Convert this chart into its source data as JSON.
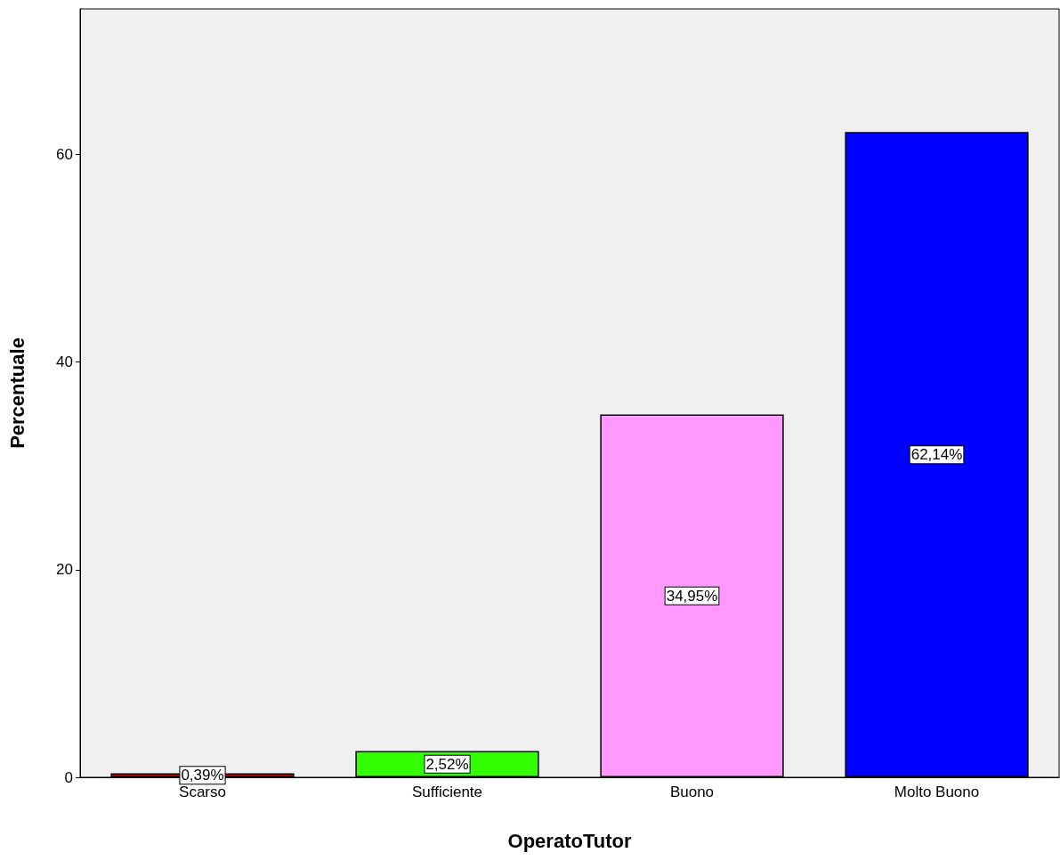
{
  "chart_data": {
    "type": "bar",
    "xlabel": "OperatoTutor",
    "ylabel": "Percentuale",
    "categories": [
      "Scarso",
      "Sufficiente",
      "Buono",
      "Molto Buono"
    ],
    "values": [
      0.39,
      2.52,
      34.95,
      62.14
    ],
    "colors": [
      "#cc0000",
      "#33ff00",
      "#ff99ff",
      "#0000ff"
    ],
    "value_labels": [
      "0,39%",
      "2,52%",
      "34,95%",
      "62,14%"
    ],
    "ylim": [
      0,
      74
    ],
    "yticks": [
      0,
      20,
      40,
      60
    ],
    "grid": false
  }
}
